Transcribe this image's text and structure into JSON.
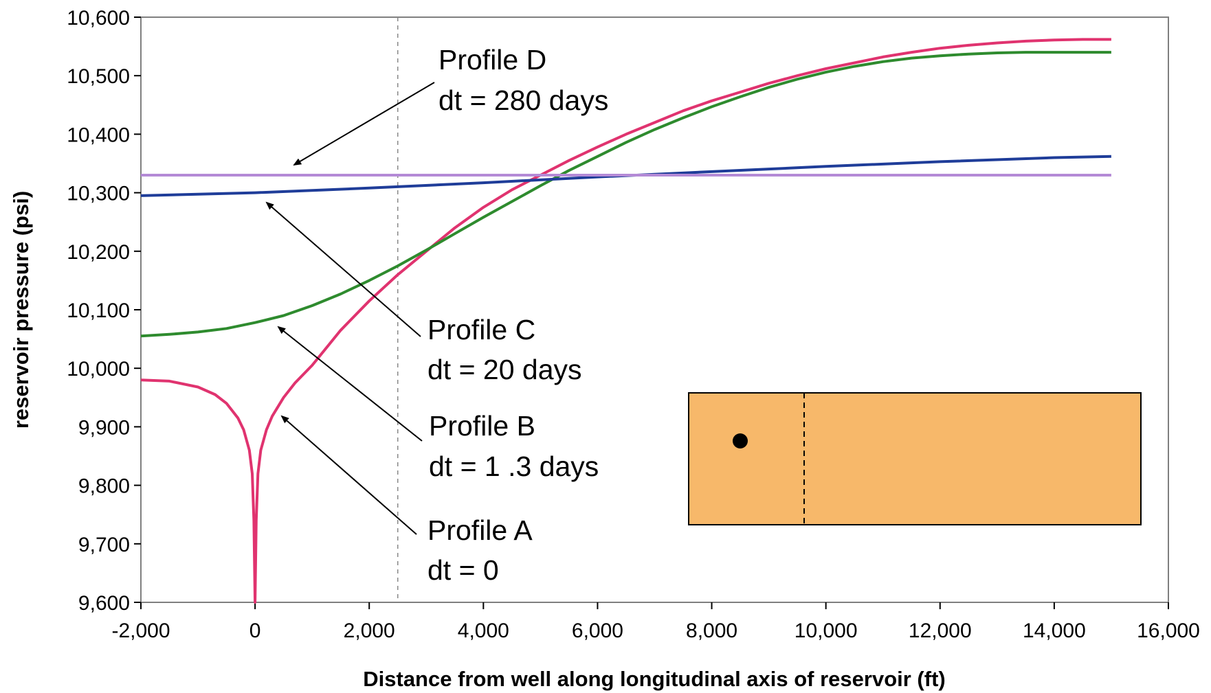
{
  "chart_data": {
    "type": "line",
    "title": "",
    "xlabel": "Distance from well along longitudinal axis of reservoir (ft)",
    "ylabel": "reservoir pressure (psi)",
    "xlim": [
      -2000,
      16000
    ],
    "ylim": [
      9600,
      10600
    ],
    "xticks": [
      -2000,
      0,
      2000,
      4000,
      6000,
      8000,
      10000,
      12000,
      14000,
      16000
    ],
    "yticks": [
      9600,
      9700,
      9800,
      9900,
      10000,
      10100,
      10200,
      10300,
      10400,
      10500,
      10600
    ],
    "grid": false,
    "legend": "none",
    "reference_line_x": 2500,
    "series": [
      {
        "color": "#e0336f",
        "x": [
          -2000,
          -1500,
          -1000,
          -700,
          -500,
          -300,
          -200,
          -100,
          -50,
          -20,
          0,
          20,
          50,
          100,
          200,
          300,
          500,
          700,
          1000,
          1500,
          2000,
          2500,
          3000,
          3500,
          4000,
          4500,
          5000,
          5500,
          6000,
          6500,
          7000,
          7500,
          8000,
          8500,
          9000,
          9500,
          10000,
          10500,
          11000,
          11500,
          12000,
          12500,
          13000,
          13500,
          14000,
          14500,
          15000
        ],
        "y": [
          9980,
          9978,
          9968,
          9955,
          9940,
          9915,
          9895,
          9860,
          9820,
          9740,
          9600,
          9740,
          9820,
          9860,
          9895,
          9918,
          9950,
          9975,
          10005,
          10065,
          10115,
          10160,
          10200,
          10240,
          10275,
          10305,
          10330,
          10355,
          10378,
          10400,
          10420,
          10440,
          10457,
          10472,
          10487,
          10500,
          10512,
          10522,
          10532,
          10540,
          10547,
          10552,
          10556,
          10559,
          10561,
          10562,
          10562
        ]
      },
      {
        "color": "#2e8b2e",
        "x": [
          -2000,
          -1500,
          -1000,
          -500,
          0,
          500,
          1000,
          1500,
          2000,
          2500,
          3000,
          3500,
          4000,
          4500,
          5000,
          5500,
          6000,
          6500,
          7000,
          7500,
          8000,
          8500,
          9000,
          9500,
          10000,
          10500,
          11000,
          11500,
          12000,
          12500,
          13000,
          13500,
          14000,
          14500,
          15000
        ],
        "y": [
          10055,
          10058,
          10062,
          10068,
          10078,
          10090,
          10107,
          10127,
          10150,
          10175,
          10202,
          10230,
          10258,
          10285,
          10312,
          10338,
          10362,
          10386,
          10408,
          10428,
          10447,
          10464,
          10480,
          10494,
          10506,
          10516,
          10524,
          10530,
          10534,
          10537,
          10539,
          10540,
          10540,
          10540,
          10540
        ]
      },
      {
        "color": "#1f3d99",
        "x": [
          -2000,
          0,
          2000,
          4000,
          6000,
          8000,
          10000,
          12000,
          14000,
          15000
        ],
        "y": [
          10295,
          10300,
          10308,
          10317,
          10327,
          10336,
          10345,
          10353,
          10360,
          10362
        ]
      },
      {
        "color": "#b48ad6",
        "x": [
          -2000,
          15000
        ],
        "y": [
          10330,
          10330
        ]
      }
    ],
    "annotations": [
      {
        "line1": "Profile D",
        "line2": "dt = 280 days"
      },
      {
        "line1": "Profile C",
        "line2": "dt = 20 days"
      },
      {
        "line1": "Profile B",
        "line2": "dt = 1 .3 days"
      },
      {
        "line1": "Profile A",
        "line2": "dt = 0"
      }
    ],
    "inset": {
      "fill": "#f7b86a"
    }
  }
}
